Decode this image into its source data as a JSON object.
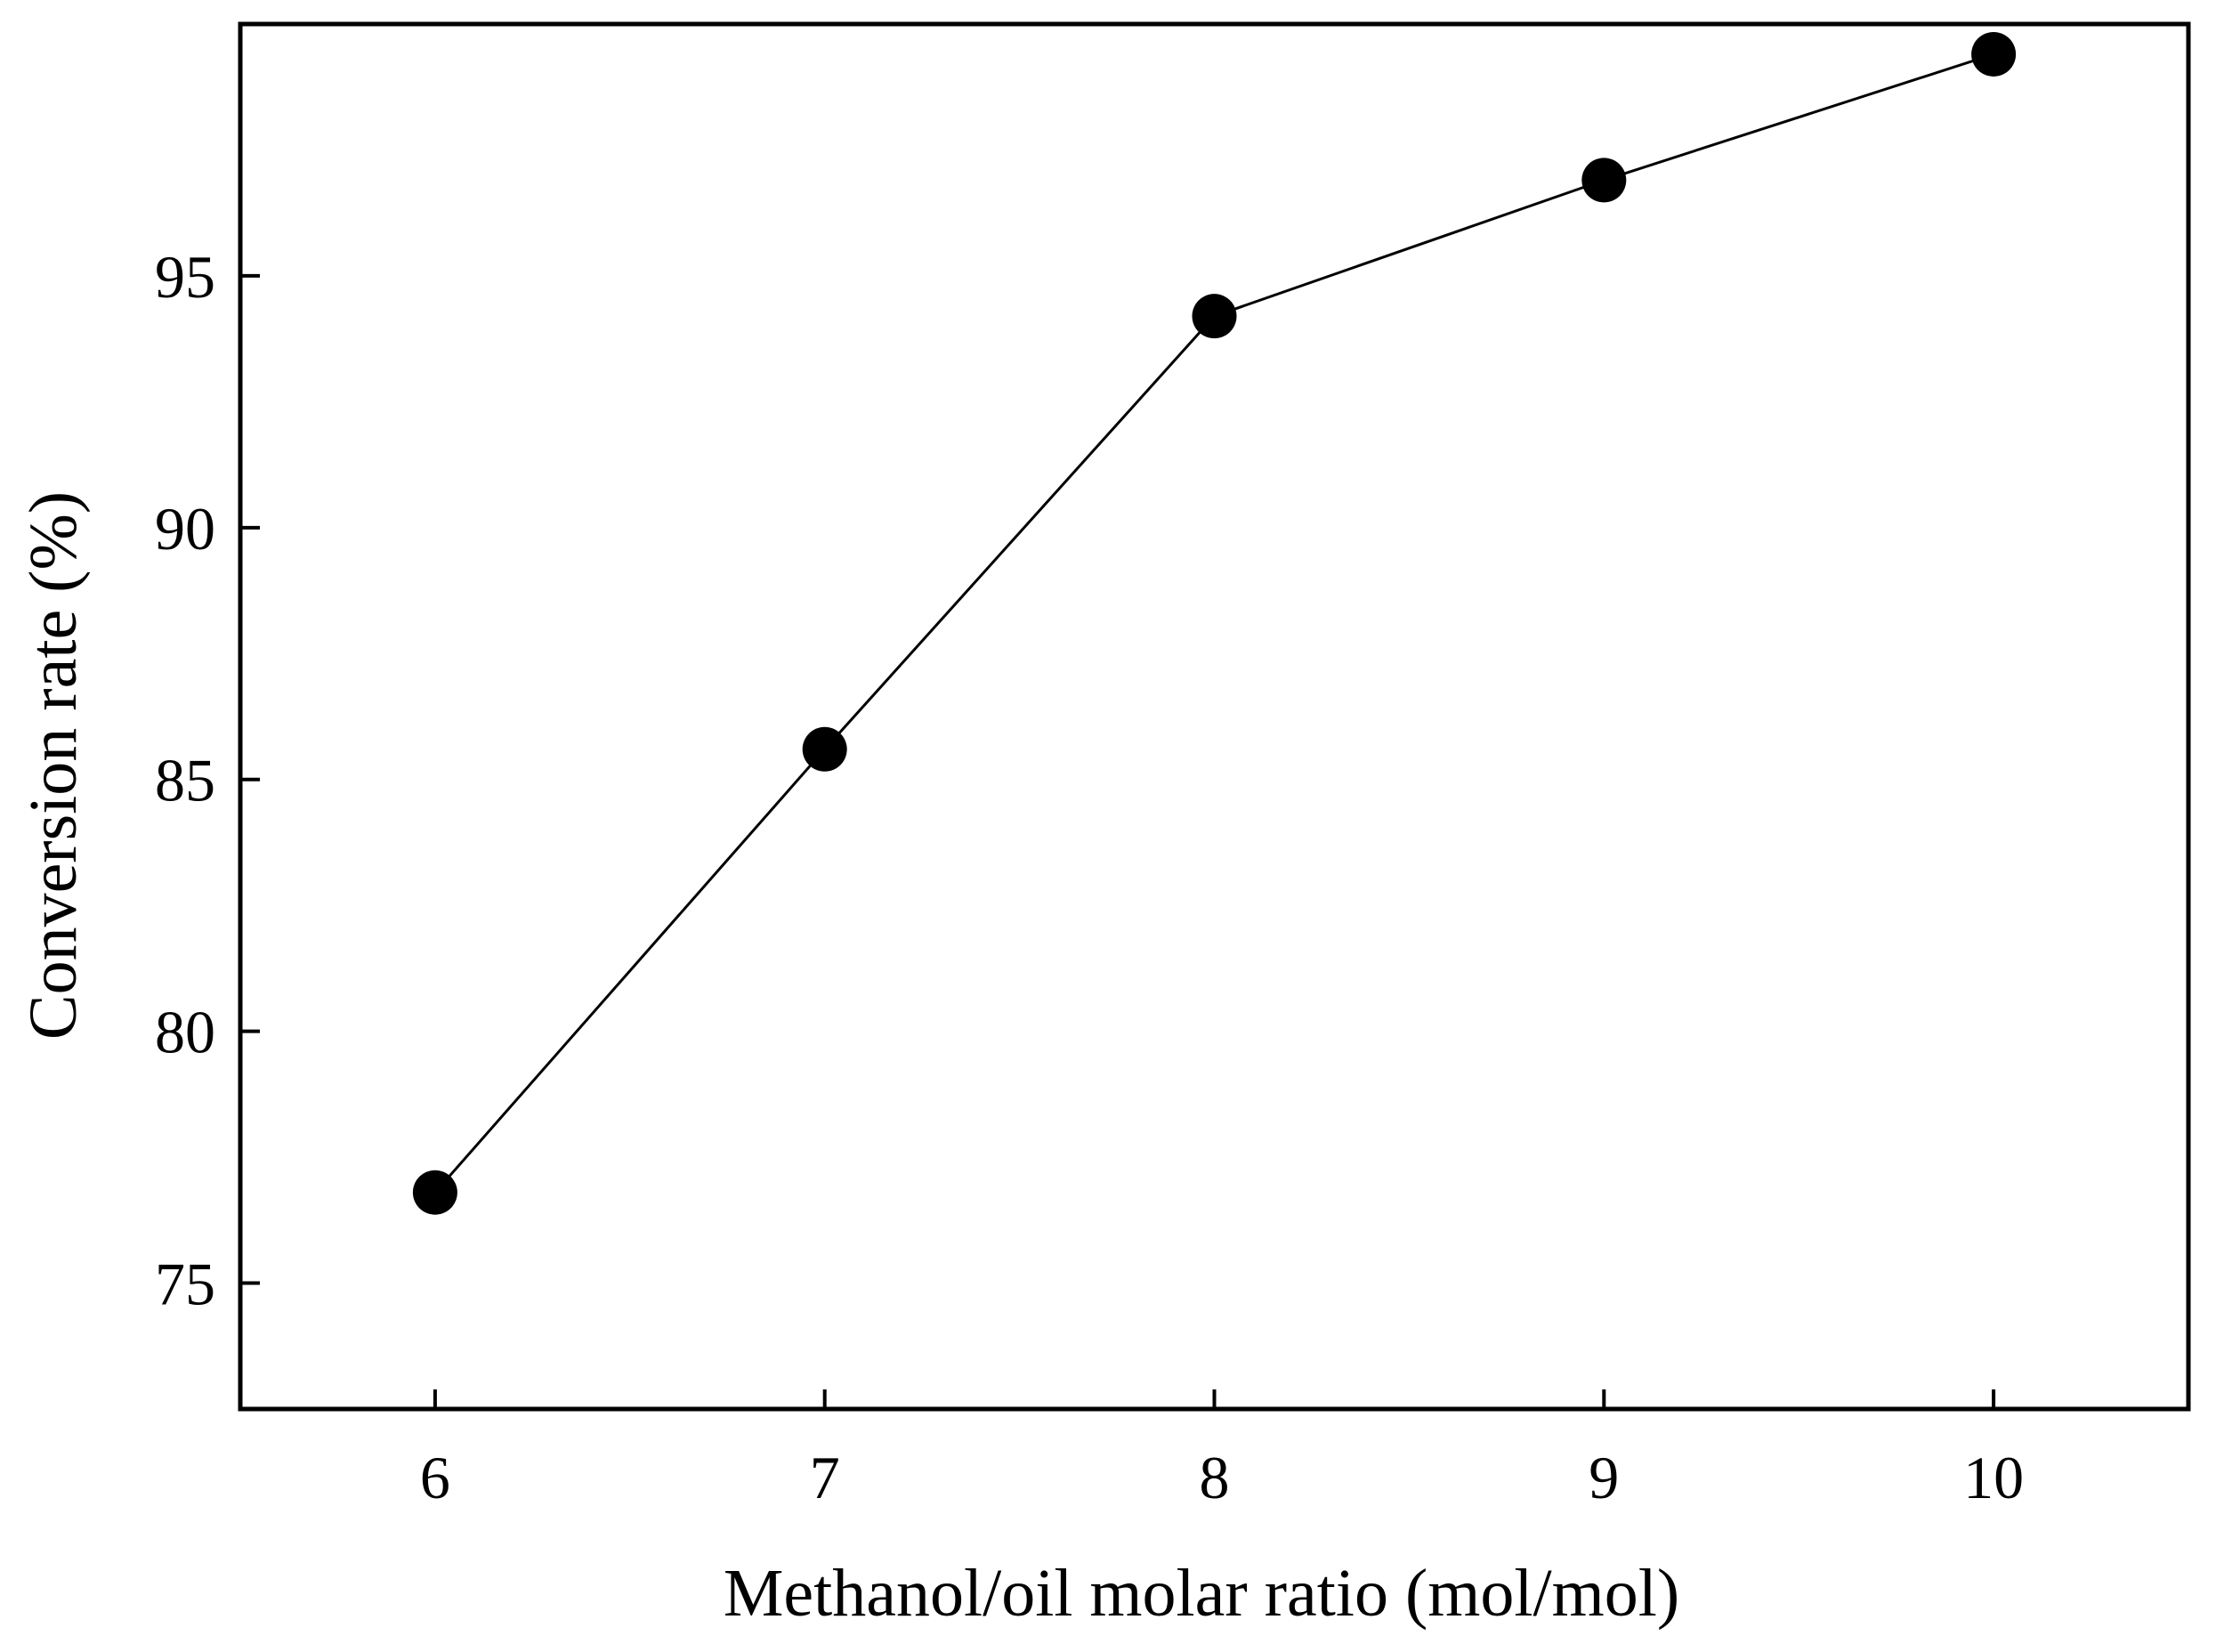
{
  "chart_data": {
    "type": "line",
    "title": "",
    "xlabel": "Methanol/oil molar ratio (mol/mol)",
    "ylabel": "Conversion rate (%)",
    "x": [
      6,
      7,
      8,
      9,
      10
    ],
    "series": [
      {
        "name": "Conversion rate",
        "values": [
          76.8,
          85.6,
          94.2,
          96.9,
          99.4
        ],
        "marker": "filled-circle",
        "color": "#000000"
      }
    ],
    "xlim": [
      5.5,
      10.5
    ],
    "ylim": [
      72.5,
      100
    ],
    "xticks": [
      6,
      7,
      8,
      9,
      10
    ],
    "yticks": [
      75,
      80,
      85,
      90,
      95
    ],
    "xtick_labels": [
      "6",
      "7",
      "8",
      "9",
      "10"
    ],
    "ytick_labels": [
      "75",
      "80",
      "85",
      "90",
      "95"
    ],
    "grid": false,
    "legend": "none"
  }
}
